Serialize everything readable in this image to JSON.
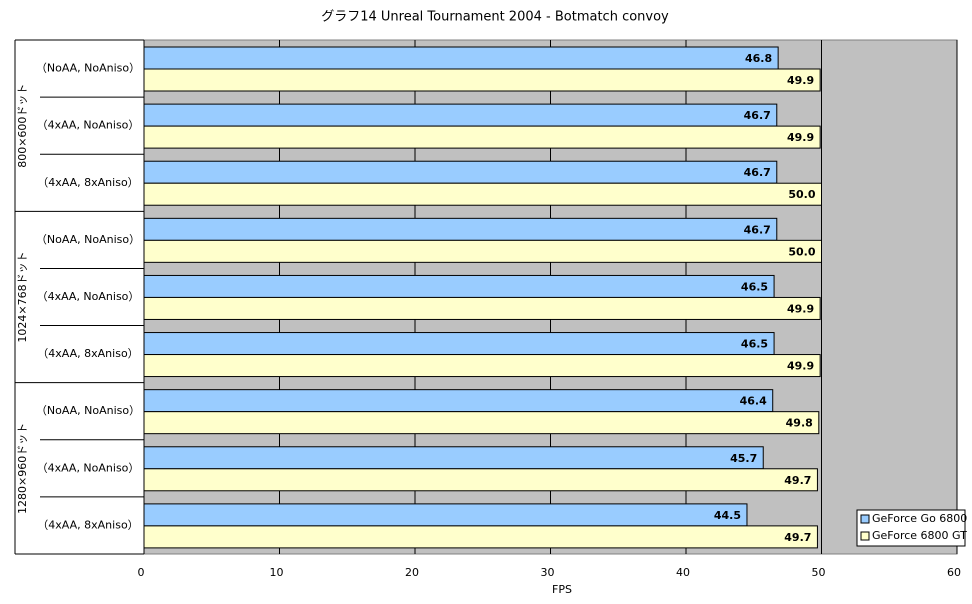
{
  "chart_data": {
    "type": "bar",
    "orientation": "horizontal",
    "title": "グラフ14  Unreal Tournament 2004 - Botmatch convoy",
    "x_label": "FPS",
    "groups": [
      {
        "name": "800×600ドット",
        "categories": [
          "（NoAA, NoAniso）",
          "（4xAA, NoAniso）",
          "（4xAA, 8xAniso）"
        ]
      },
      {
        "name": "1024×768ドット",
        "categories": [
          "（NoAA, NoAniso）",
          "（4xAA, NoAniso）",
          "（4xAA, 8xAniso）"
        ]
      },
      {
        "name": "1280×960ドット",
        "categories": [
          "（NoAA, NoAniso）",
          "（4xAA, NoAniso）",
          "（4xAA, 8xAniso）"
        ]
      }
    ],
    "series": [
      {
        "name": "GeForce Go 6800",
        "color": "#99ccff",
        "values": [
          46.8,
          46.7,
          46.7,
          46.7,
          46.5,
          46.5,
          46.4,
          45.7,
          44.5
        ],
        "value_labels": [
          "46.8",
          "46.7",
          "46.7",
          "46.7",
          "46.5",
          "46.5",
          "46.4",
          "45.7",
          "44.5"
        ]
      },
      {
        "name": "GeForce 6800 GT",
        "color": "#ffffcc",
        "values": [
          49.9,
          49.9,
          50.0,
          50.0,
          49.9,
          49.9,
          49.8,
          49.7,
          49.7
        ],
        "value_labels": [
          "49.9",
          "49.9",
          "50.0",
          "50.0",
          "49.9",
          "49.9",
          "49.8",
          "49.7",
          "49.7"
        ]
      }
    ],
    "xlim": [
      0,
      60
    ],
    "xticks": [
      0,
      10,
      20,
      30,
      40,
      50,
      60
    ],
    "grid": true,
    "plot_background": "#c0c0c0",
    "legend": "bottom-right"
  }
}
